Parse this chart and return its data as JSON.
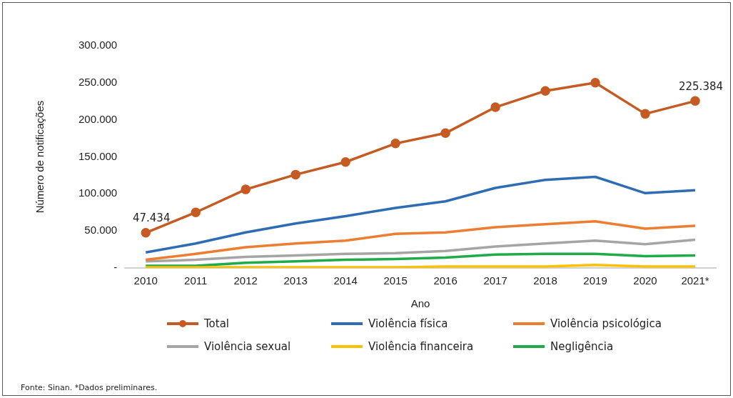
{
  "chart_data": {
    "type": "line",
    "xlabel": "Ano",
    "ylabel": "Número de notificações",
    "categories": [
      "2010",
      "2011",
      "2012",
      "2013",
      "2014",
      "2015",
      "2016",
      "2017",
      "2018",
      "2019",
      "2020",
      "2021*"
    ],
    "series": [
      {
        "name": "Total",
        "color": "#c55a23",
        "marker": "circle",
        "values": [
          47434,
          75000,
          106000,
          126000,
          143000,
          168000,
          182000,
          217000,
          239000,
          250000,
          208000,
          225384
        ]
      },
      {
        "name": "Violência física",
        "color": "#2e6db4",
        "marker": "none",
        "values": [
          21000,
          33000,
          48000,
          60000,
          70000,
          81000,
          90000,
          108000,
          119000,
          123000,
          101000,
          105000
        ]
      },
      {
        "name": "Violência psicológica",
        "color": "#ed7d31",
        "marker": "none",
        "values": [
          11000,
          19000,
          28000,
          33000,
          37000,
          46000,
          48000,
          55000,
          59000,
          63000,
          53000,
          57000
        ]
      },
      {
        "name": "Violência sexual",
        "color": "#a5a5a5",
        "marker": "none",
        "values": [
          9000,
          11000,
          15000,
          17000,
          19000,
          20000,
          23000,
          29000,
          33000,
          37000,
          32000,
          38000
        ]
      },
      {
        "name": "Violência financeira",
        "color": "#ffc000",
        "marker": "none",
        "values": [
          1000,
          1000,
          1000,
          1000,
          1000,
          1000,
          2000,
          2000,
          2000,
          4000,
          2000,
          2000
        ]
      },
      {
        "name": "Negligência",
        "color": "#1faa4b",
        "marker": "none",
        "values": [
          3000,
          3000,
          7000,
          9000,
          11000,
          12000,
          14000,
          18000,
          19000,
          19000,
          16000,
          17000
        ]
      }
    ],
    "ylim": [
      0,
      300000
    ],
    "yticks": [
      {
        "value": 0,
        "label": "-"
      },
      {
        "value": 50000,
        "label": "50.000"
      },
      {
        "value": 100000,
        "label": "100.000"
      },
      {
        "value": 150000,
        "label": "150.000"
      },
      {
        "value": 200000,
        "label": "200.000"
      },
      {
        "value": 250000,
        "label": "250.000"
      },
      {
        "value": 300000,
        "label": "300.000"
      }
    ],
    "grid": false,
    "legend": "bottom",
    "line_style": "solid",
    "annotations": [
      {
        "text": "47.434",
        "x": "2010",
        "y": 47434
      },
      {
        "text": "225.384",
        "x": "2021*",
        "y": 225384
      },
      "Fonte: Sinan. *Dados preliminares."
    ]
  }
}
